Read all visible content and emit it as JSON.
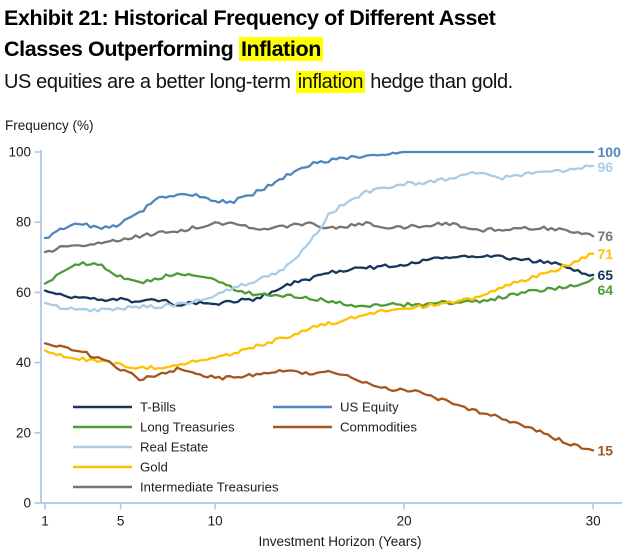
{
  "header": {
    "title_line1": "Exhibit 21: Historical Frequency of Different Asset",
    "title_line2_prefix": "Classes Outperforming ",
    "title_highlight": "Inflation",
    "subtitle_prefix": "US equities are a better long-term ",
    "subtitle_highlight": "inflation",
    "subtitle_suffix": " hedge than gold."
  },
  "colors": {
    "axis": "#a9c6e8",
    "text": "#1a1a1a",
    "legend_text": "#1f1f1f",
    "highlight": "#ffff00"
  },
  "chart_data": {
    "type": "line",
    "title": "Exhibit 21: Historical Frequency of Different Asset Classes Outperforming Inflation",
    "subtitle": "US equities are a better long-term inflation hedge than gold.",
    "xlabel": "Investment Horizon (Years)",
    "ylabel": "Frequency (%)",
    "xlim": [
      1,
      31.5
    ],
    "ylim": [
      0,
      100
    ],
    "x_ticks": [
      1,
      5,
      10,
      20,
      30
    ],
    "y_ticks": [
      0,
      20,
      40,
      60,
      80,
      100
    ],
    "grid": false,
    "legend_position": "inside-bottom-left-two-columns",
    "x": [
      1,
      2,
      3,
      4,
      5,
      6,
      7,
      8,
      9,
      10,
      11,
      12,
      13,
      14,
      15,
      16,
      17,
      18,
      19,
      20,
      21,
      22,
      23,
      24,
      25,
      26,
      27,
      28,
      29,
      30
    ],
    "series": [
      {
        "name": "T-Bills",
        "color": "#16365c",
        "end_label": 65,
        "values": [
          60.5,
          59,
          58.5,
          57.5,
          58.5,
          57,
          58,
          56.5,
          57,
          56.5,
          57.5,
          58,
          60,
          62.5,
          64,
          65.5,
          66.5,
          67,
          67.5,
          68,
          69,
          70,
          70.5,
          70.5,
          70,
          69.5,
          69,
          68,
          66.5,
          65
        ]
      },
      {
        "name": "Long Treasuries",
        "color": "#4f9c35",
        "end_label": 64,
        "values": [
          62.5,
          66.5,
          68.5,
          67.5,
          64.5,
          62.5,
          64,
          65.5,
          65,
          63.5,
          61,
          59.5,
          59.5,
          59,
          58.5,
          57.5,
          56.5,
          56,
          56.5,
          56.5,
          56.5,
          57,
          57,
          57.5,
          58.5,
          59.5,
          60.5,
          61,
          62,
          64
        ]
      },
      {
        "name": "Real Estate",
        "color": "#a9cde9",
        "end_label": 96,
        "values": [
          57,
          55.5,
          55,
          55,
          55.5,
          56,
          56,
          56.5,
          57.5,
          59,
          61.5,
          63,
          65,
          68,
          74,
          82,
          86,
          88.5,
          90,
          91,
          91,
          92,
          93.5,
          94.5,
          92.5,
          93.5,
          94,
          94.5,
          95,
          96
        ]
      },
      {
        "name": "Gold",
        "color": "#ffc000",
        "end_label": 71,
        "values": [
          43.5,
          42,
          41,
          40.5,
          39.5,
          38.5,
          38.5,
          39.5,
          40.5,
          41.5,
          42.5,
          44.5,
          46,
          47.5,
          50,
          51,
          52.5,
          54,
          55,
          55.5,
          56,
          57,
          57.5,
          58.5,
          61,
          63,
          64.5,
          66.5,
          68.5,
          71
        ]
      },
      {
        "name": "Intermediate Treasuries",
        "color": "#757575",
        "end_label": 76,
        "values": [
          71.5,
          73,
          73.5,
          74.5,
          75,
          76,
          77,
          77.5,
          78.5,
          79.5,
          79.5,
          78,
          78.5,
          79,
          79.5,
          78.5,
          79,
          79.5,
          78.5,
          78.5,
          79,
          79.5,
          79,
          77.5,
          78,
          78,
          78.5,
          78,
          77,
          76
        ]
      },
      {
        "name": "US Equity",
        "color": "#4e86c0",
        "end_label": 100,
        "values": [
          75.5,
          78.5,
          79.5,
          78,
          79.5,
          82.5,
          87,
          88,
          87.5,
          86,
          86,
          88,
          91,
          94,
          96.5,
          97.5,
          98.5,
          99,
          99.5,
          100,
          100,
          100,
          100,
          100,
          100,
          100,
          100,
          100,
          100,
          100
        ]
      },
      {
        "name": "Commodities",
        "color": "#a4561c",
        "end_label": 15,
        "values": [
          45.5,
          44.5,
          43,
          41,
          38,
          35.5,
          36.5,
          38,
          37,
          35.5,
          36,
          36.5,
          37.5,
          37.5,
          37,
          38,
          36.5,
          34,
          32.5,
          32,
          31.5,
          29.5,
          27.5,
          26,
          24.5,
          22.5,
          20.5,
          18.5,
          16.5,
          15
        ]
      }
    ]
  }
}
